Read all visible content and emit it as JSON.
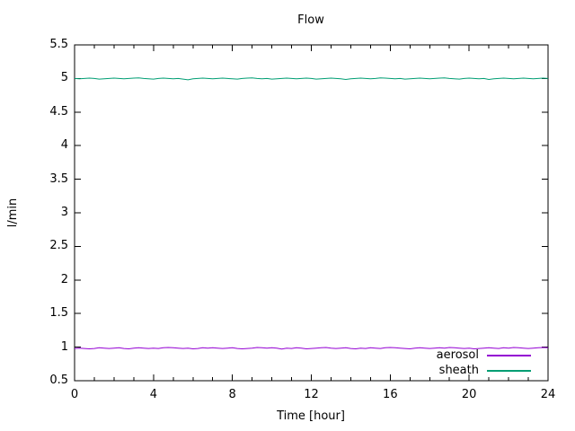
{
  "title": "Flow",
  "axes": {
    "x_label": "Time [hour]",
    "y_label": "l/min"
  },
  "colors": {
    "foreground": "#000000",
    "background": "#ffffff",
    "aerosol": "#9400D3",
    "sheath": "#009E73"
  },
  "legend": [
    {
      "label": "aerosol",
      "color": "#9400D3"
    },
    {
      "label": "sheath",
      "color": "#009E73"
    }
  ],
  "chart_data": {
    "type": "line",
    "title": "Flow",
    "xlabel": "Time [hour]",
    "ylabel": "l/min",
    "xlim": [
      0,
      24
    ],
    "ylim": [
      0.5,
      5.5
    ],
    "x_tick_step": 4,
    "x_minor_tick_step": 1,
    "y_tick_step": 0.5,
    "x_tick_labels": [
      "0",
      "4",
      "8",
      "12",
      "16",
      "20",
      "24"
    ],
    "y_tick_labels": [
      "0.5",
      "1",
      "1.5",
      "2",
      "2.5",
      "3",
      "3.5",
      "4",
      "4.5",
      "5",
      "5.5"
    ],
    "grid": false,
    "legend_position": "inside-bottom-right",
    "x_start": 0,
    "x_step": 0.25,
    "series": [
      {
        "name": "aerosol",
        "color": "#9400D3",
        "values": [
          0.98,
          0.985,
          0.98,
          0.975,
          0.98,
          0.99,
          0.985,
          0.98,
          0.985,
          0.99,
          0.98,
          0.975,
          0.985,
          0.99,
          0.985,
          0.98,
          0.985,
          0.98,
          0.99,
          0.995,
          0.99,
          0.985,
          0.98,
          0.985,
          0.975,
          0.98,
          0.99,
          0.985,
          0.99,
          0.985,
          0.98,
          0.985,
          0.99,
          0.98,
          0.975,
          0.98,
          0.985,
          0.995,
          0.99,
          0.985,
          0.99,
          0.985,
          0.97,
          0.985,
          0.98,
          0.99,
          0.985,
          0.975,
          0.98,
          0.985,
          0.99,
          0.995,
          0.985,
          0.98,
          0.985,
          0.99,
          0.98,
          0.975,
          0.985,
          0.98,
          0.99,
          0.985,
          0.98,
          0.99,
          0.995,
          0.99,
          0.985,
          0.98,
          0.975,
          0.985,
          0.99,
          0.985,
          0.98,
          0.985,
          0.99,
          0.985,
          0.995,
          0.99,
          0.985,
          0.98,
          0.985,
          0.975,
          0.98,
          0.985,
          0.99,
          0.985,
          0.98,
          0.99,
          0.985,
          0.995,
          0.99,
          0.985,
          0.98,
          0.985,
          0.99,
          0.995,
          0.99
        ]
      },
      {
        "name": "sheath",
        "color": "#009E73",
        "values": [
          5.0,
          4.995,
          5.0,
          5.005,
          5.0,
          4.99,
          4.995,
          5.0,
          5.005,
          5.0,
          4.995,
          5.0,
          5.005,
          5.01,
          5.0,
          4.995,
          4.99,
          5.0,
          5.005,
          5.0,
          4.995,
          5.0,
          4.99,
          4.98,
          4.995,
          5.0,
          5.005,
          5.0,
          4.995,
          5.0,
          5.005,
          5.0,
          4.995,
          4.99,
          5.0,
          5.005,
          5.01,
          5.0,
          4.995,
          5.0,
          4.99,
          4.995,
          5.0,
          5.005,
          5.0,
          4.995,
          5.0,
          5.005,
          5.0,
          4.99,
          4.995,
          5.0,
          5.005,
          5.0,
          4.995,
          4.985,
          4.995,
          5.0,
          5.005,
          5.0,
          4.995,
          5.0,
          5.01,
          5.005,
          5.0,
          4.995,
          5.0,
          4.99,
          4.995,
          5.0,
          5.005,
          5.0,
          4.995,
          5.0,
          5.005,
          5.01,
          5.0,
          4.995,
          4.99,
          5.0,
          5.005,
          5.0,
          4.995,
          5.0,
          4.985,
          4.995,
          5.0,
          5.005,
          5.0,
          4.995,
          5.0,
          5.005,
          5.0,
          4.995,
          5.0,
          5.005,
          5.0
        ]
      }
    ]
  }
}
